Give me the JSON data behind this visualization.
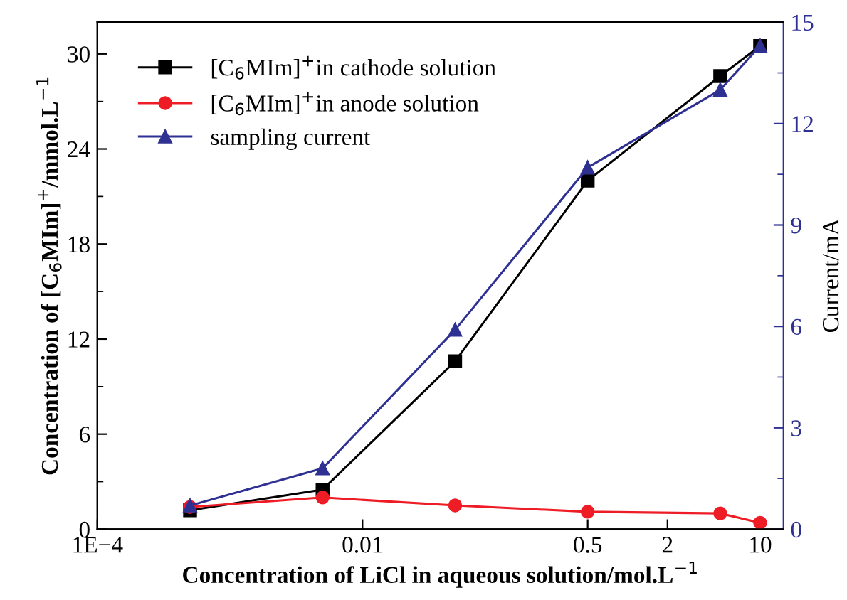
{
  "chart_data": {
    "type": "line",
    "xlabel": "Concentration of LiCl in aqueous solution/mol.L$^{−1}$",
    "ylabel": "Concentration of [C$_{6}$MIm]$^{+}$/mmol.L$^{−1}$",
    "y2label": "Current/mA",
    "x": [
      0.0005,
      0.005,
      0.05,
      0.5,
      5,
      10
    ],
    "log": "x",
    "xlim": [
      0.0001,
      15
    ],
    "xticks": [
      {
        "value": 0.0001,
        "label": "1E−4"
      },
      0.01,
      0.5,
      2,
      10
    ],
    "ylim": [
      0,
      32
    ],
    "yticks": [
      0,
      6,
      12,
      18,
      24,
      30
    ],
    "y2lim": [
      0,
      15
    ],
    "y2ticks": [
      0,
      3,
      6,
      9,
      12,
      15
    ],
    "legend": "top left",
    "grid": false,
    "series": [
      {
        "name": "[C$_{6}$MIm]$^{+}$in cathode solution",
        "color": "#000000",
        "marker": "square",
        "values": [
          1.2,
          2.5,
          10.6,
          22.0,
          28.6,
          30.5
        ]
      },
      {
        "name": "[C$_{6}$MIm]$^{+}$in anode solution",
        "color": "#ee1c25",
        "marker": "circle",
        "values": [
          1.4,
          2.0,
          1.5,
          1.1,
          1.0,
          0.4
        ]
      },
      {
        "name": "sampling current",
        "color": "#2e3192",
        "marker": "triangle",
        "axis": "y2",
        "values": [
          0.7,
          1.8,
          5.9,
          10.7,
          13.0,
          14.3
        ]
      }
    ]
  }
}
